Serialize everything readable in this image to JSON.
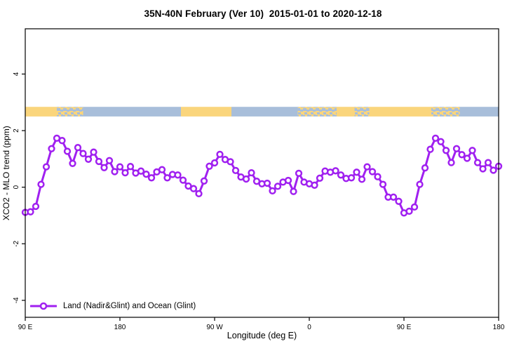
{
  "title": "35N-40N February (Ver 10)  2015-01-01 to 2020-12-18",
  "legend": {
    "label": "Land (Nadir&Glint) and Ocean (Glint)"
  },
  "chart_data": {
    "type": "line",
    "title": "35N-40N February (Ver 10)  2015-01-01 to 2020-12-18",
    "xlabel": "Longitude (deg E)",
    "ylabel": "XCO2 - MLO trend (ppm)",
    "x_range_deg": [
      90,
      540
    ],
    "ylim": [
      -4.6,
      5.6
    ],
    "grid": false,
    "legend_position": "bottom-left-inside",
    "xticks": [
      {
        "deg": 90,
        "label": "90 E"
      },
      {
        "deg": 180,
        "label": "180"
      },
      {
        "deg": 270,
        "label": "90 W"
      },
      {
        "deg": 360,
        "label": "0"
      },
      {
        "deg": 450,
        "label": "90 E"
      },
      {
        "deg": 540,
        "label": "180"
      }
    ],
    "yticks": [
      {
        "v": 4,
        "label": "4"
      },
      {
        "v": 2,
        "label": "2"
      },
      {
        "v": 0,
        "label": "0"
      },
      {
        "v": -2,
        "label": "-2"
      },
      {
        "v": -4,
        "label": "-4"
      }
    ],
    "land_ocean_strip": {
      "description": "map strip showing land vs ocean across the 35N-40N band",
      "y_range_ppm": [
        2.5,
        2.84
      ],
      "land_color": "#FAD57C",
      "ocean_color": "#A8BEDA",
      "segments": [
        {
          "from": 90,
          "to": 120,
          "type": "land"
        },
        {
          "from": 120,
          "to": 145,
          "type": "coast-mix"
        },
        {
          "from": 145,
          "to": 238,
          "type": "ocean"
        },
        {
          "from": 238,
          "to": 286,
          "type": "land"
        },
        {
          "from": 286,
          "to": 349,
          "type": "ocean"
        },
        {
          "from": 349,
          "to": 386,
          "type": "coast-mix"
        },
        {
          "from": 386,
          "to": 403,
          "type": "land"
        },
        {
          "from": 403,
          "to": 417,
          "type": "coast-mix"
        },
        {
          "from": 417,
          "to": 476,
          "type": "land"
        },
        {
          "from": 476,
          "to": 503,
          "type": "coast-mix"
        },
        {
          "from": 503,
          "to": 540,
          "type": "ocean"
        }
      ]
    },
    "series": [
      {
        "name": "Land (Nadir&Glint) and Ocean (Glint)",
        "color": "#A020F0",
        "marker": "open-circle",
        "x_start_deg": 90,
        "x_step_deg": 5,
        "values": [
          -0.89,
          -0.87,
          -0.68,
          0.1,
          0.72,
          1.36,
          1.73,
          1.65,
          1.27,
          0.84,
          1.4,
          1.19,
          0.99,
          1.24,
          0.91,
          0.69,
          0.94,
          0.55,
          0.72,
          0.51,
          0.73,
          0.5,
          0.57,
          0.46,
          0.33,
          0.54,
          0.62,
          0.33,
          0.45,
          0.43,
          0.25,
          0.04,
          -0.05,
          -0.23,
          0.22,
          0.74,
          0.86,
          1.16,
          0.98,
          0.9,
          0.59,
          0.36,
          0.29,
          0.51,
          0.21,
          0.12,
          0.14,
          -0.13,
          0.03,
          0.18,
          0.24,
          -0.15,
          0.49,
          0.18,
          0.12,
          0.07,
          0.32,
          0.57,
          0.53,
          0.58,
          0.43,
          0.31,
          0.33,
          0.53,
          0.28,
          0.72,
          0.55,
          0.37,
          0.1,
          -0.35,
          -0.35,
          -0.5,
          -0.91,
          -0.85,
          -0.7,
          0.1,
          0.68,
          1.34,
          1.73,
          1.61,
          1.3,
          0.87,
          1.36,
          1.15,
          1.02,
          1.3,
          0.87,
          0.65,
          0.87,
          0.6,
          0.74
        ]
      }
    ]
  }
}
